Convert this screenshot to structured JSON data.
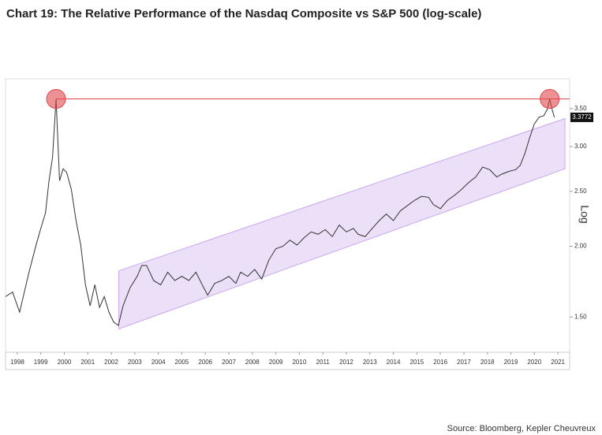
{
  "chart_data": {
    "type": "line",
    "title": "Chart 19: The Relative Performance of the Nasdaq Composite vs S&P 500 (log-scale)",
    "source": "Source: Bloomberg, Kepler Cheuvreux",
    "y_axis_label": "Log",
    "ylog": true,
    "xlim": [
      1998,
      2022
    ],
    "ylim": [
      1.3,
      3.95
    ],
    "xticks": [
      {
        "value": 1998.5,
        "label": "1998"
      },
      {
        "value": 1999.5,
        "label": "1999"
      },
      {
        "value": 2000.5,
        "label": "2000"
      },
      {
        "value": 2001.5,
        "label": "2001"
      },
      {
        "value": 2002.5,
        "label": "2002"
      },
      {
        "value": 2003.5,
        "label": "2003"
      },
      {
        "value": 2004.5,
        "label": "2004"
      },
      {
        "value": 2005.5,
        "label": "2005"
      },
      {
        "value": 2006.5,
        "label": "2006"
      },
      {
        "value": 2007.5,
        "label": "2007"
      },
      {
        "value": 2008.5,
        "label": "2008"
      },
      {
        "value": 2009.5,
        "label": "2009"
      },
      {
        "value": 2010.5,
        "label": "2010"
      },
      {
        "value": 2011.5,
        "label": "2011"
      },
      {
        "value": 2012.5,
        "label": "2012"
      },
      {
        "value": 2013.5,
        "label": "2013"
      },
      {
        "value": 2014.5,
        "label": "2014"
      },
      {
        "value": 2015.5,
        "label": "2015"
      },
      {
        "value": 2016.5,
        "label": "2016"
      },
      {
        "value": 2017.5,
        "label": "2017"
      },
      {
        "value": 2018.5,
        "label": "2018"
      },
      {
        "value": 2019.5,
        "label": "2019"
      },
      {
        "value": 2020.5,
        "label": "2020"
      },
      {
        "value": 2021.5,
        "label": "2021"
      }
    ],
    "yticks": [
      {
        "value": 1.5,
        "label": "1.50"
      },
      {
        "value": 2,
        "label": "2.00"
      },
      {
        "value": 2.5,
        "label": "2.50"
      },
      {
        "value": 3,
        "label": "3.00"
      },
      {
        "value": 3.5,
        "label": "3.50"
      }
    ],
    "series": [
      {
        "color": "#333333",
        "x": [
          1998.0,
          1998.3,
          1998.6,
          1998.8,
          1999.0,
          1999.3,
          1999.5,
          1999.7,
          1999.85,
          2000.0,
          2000.15,
          2000.3,
          2000.45,
          2000.6,
          2000.8,
          2001.0,
          2001.2,
          2001.4,
          2001.6,
          2001.8,
          2002.0,
          2002.2,
          2002.4,
          2002.6,
          2002.8,
          2003.0,
          2003.3,
          2003.6,
          2003.8,
          2004.0,
          2004.3,
          2004.6,
          2004.9,
          2005.2,
          2005.5,
          2005.8,
          2006.1,
          2006.4,
          2006.6,
          2006.9,
          2007.2,
          2007.5,
          2007.8,
          2008.0,
          2008.3,
          2008.6,
          2008.9,
          2009.2,
          2009.5,
          2009.8,
          2010.1,
          2010.4,
          2010.7,
          2011.0,
          2011.3,
          2011.6,
          2011.9,
          2012.2,
          2012.5,
          2012.8,
          2013.0,
          2013.3,
          2013.6,
          2013.9,
          2014.2,
          2014.5,
          2014.8,
          2015.1,
          2015.4,
          2015.7,
          2016.0,
          2016.2,
          2016.5,
          2016.8,
          2017.1,
          2017.4,
          2017.7,
          2018.0,
          2018.3,
          2018.6,
          2018.9,
          2019.1,
          2019.4,
          2019.7,
          2019.9,
          2020.1,
          2020.3,
          2020.5,
          2020.7,
          2020.9,
          2021.05,
          2021.15,
          2021.25,
          2021.35
        ],
        "values": [
          1.63,
          1.66,
          1.53,
          1.66,
          1.8,
          2.01,
          2.15,
          2.29,
          2.61,
          2.87,
          3.64,
          2.61,
          2.74,
          2.7,
          2.52,
          2.22,
          2.01,
          1.71,
          1.57,
          1.71,
          1.56,
          1.63,
          1.53,
          1.47,
          1.45,
          1.57,
          1.69,
          1.77,
          1.85,
          1.85,
          1.74,
          1.71,
          1.8,
          1.74,
          1.77,
          1.74,
          1.8,
          1.7,
          1.64,
          1.72,
          1.74,
          1.77,
          1.72,
          1.8,
          1.77,
          1.82,
          1.75,
          1.89,
          1.98,
          2.0,
          2.05,
          2.01,
          2.07,
          2.12,
          2.1,
          2.14,
          2.08,
          2.18,
          2.12,
          2.15,
          2.1,
          2.08,
          2.15,
          2.22,
          2.28,
          2.22,
          2.31,
          2.36,
          2.41,
          2.45,
          2.44,
          2.37,
          2.33,
          2.41,
          2.46,
          2.52,
          2.59,
          2.65,
          2.76,
          2.73,
          2.65,
          2.68,
          2.71,
          2.73,
          2.78,
          2.92,
          3.11,
          3.29,
          3.38,
          3.4,
          3.49,
          3.64,
          3.49,
          3.3772
        ]
      }
    ],
    "channel": {
      "color": "#e6d5f7",
      "x": [
        2002.82,
        2021.8
      ],
      "upper": [
        1.81,
        3.36
      ],
      "lower": [
        1.43,
        2.74
      ]
    },
    "reference_line": {
      "value": 3.64,
      "color": "#e0474c",
      "highlight_x": [
        2000.15,
        2021.15
      ]
    }
  }
}
